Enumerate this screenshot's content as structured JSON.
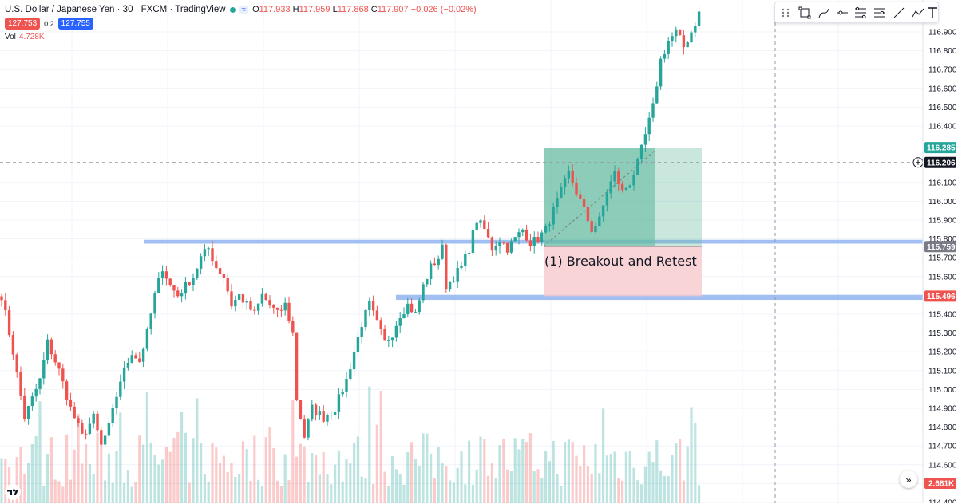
{
  "header": {
    "symbol": "U.S. Dollar / Japanese Yen · 30 · FXCM · TradingView",
    "open_label": "O",
    "open": "117.933",
    "high_label": "H",
    "high": "117.959",
    "low_label": "L",
    "low": "117.868",
    "close_label": "C",
    "close": "117.907",
    "change": "−0.026 (−0.02%)",
    "wave_icon": "≈"
  },
  "prices": {
    "sell": "127.753",
    "spread": "0.2",
    "buy": "127.755"
  },
  "volume": {
    "label": "Vol",
    "value": "4.728K"
  },
  "annotation": "(1) Breakout and Retest",
  "scroll_icon": "»",
  "colors": {
    "up": "#26a69a",
    "down": "#ef5350",
    "zone": "#90b4f0",
    "profit": "#66bba1",
    "loss": "#f7c9cd"
  },
  "toolbar_icons": [
    "drag-icon",
    "rectangle-icon",
    "path-icon",
    "horizontal-ray-icon",
    "channel-icon",
    "fib-icon",
    "trend-line-icon",
    "polyline-icon",
    "text-icon"
  ],
  "chart_data": {
    "type": "candlestick",
    "y_ticks": [
      "116.900",
      "116.800",
      "116.700",
      "116.600",
      "116.500",
      "116.400",
      "116.100",
      "116.000",
      "115.900",
      "115.800",
      "115.700",
      "115.600",
      "115.400",
      "115.300",
      "115.200",
      "115.100",
      "115.000",
      "114.900",
      "114.800",
      "114.700",
      "114.600",
      "114.500",
      "114.400"
    ],
    "ylim": [
      114.4,
      116.96
    ],
    "price_labels": [
      {
        "value": 116.285,
        "text": "116.285",
        "color": "#26a69a"
      },
      {
        "value": 116.206,
        "text": "116.206",
        "color": "#131722"
      },
      {
        "value": 115.759,
        "text": "115.759",
        "color": "#787b86"
      },
      {
        "value": 115.496,
        "text": "115.496",
        "color": "#ef5350"
      }
    ],
    "volume_label": {
      "text": "2.681K",
      "color": "#ef5350"
    },
    "zones": [
      {
        "y_from": 115.775,
        "y_to": 115.795
      },
      {
        "y_from": 115.476,
        "y_to": 115.503
      }
    ],
    "position": {
      "entry": 115.76,
      "target": 116.285,
      "stop": 115.496
    },
    "crosshair_price": 116.206,
    "path": [
      [
        0,
        115.5
      ],
      [
        3,
        115.2
      ],
      [
        6,
        114.85
      ],
      [
        10,
        115.05
      ],
      [
        12,
        115.25
      ],
      [
        15,
        115.1
      ],
      [
        18,
        114.9
      ],
      [
        21,
        114.75
      ],
      [
        24,
        114.85
      ],
      [
        26,
        114.7
      ],
      [
        28,
        114.8
      ],
      [
        31,
        115.05
      ],
      [
        34,
        115.2
      ],
      [
        36,
        115.15
      ],
      [
        38,
        115.3
      ],
      [
        40,
        115.5
      ],
      [
        42,
        115.65
      ],
      [
        44,
        115.55
      ],
      [
        46,
        115.5
      ],
      [
        48,
        115.55
      ],
      [
        50,
        115.6
      ],
      [
        52,
        115.7
      ],
      [
        54,
        115.75
      ],
      [
        56,
        115.65
      ],
      [
        58,
        115.6
      ],
      [
        60,
        115.45
      ],
      [
        62,
        115.5
      ],
      [
        64,
        115.45
      ],
      [
        66,
        115.4
      ],
      [
        68,
        115.5
      ],
      [
        70,
        115.45
      ],
      [
        72,
        115.4
      ],
      [
        74,
        115.45
      ],
      [
        76,
        115.3
      ],
      [
        77,
        114.95
      ],
      [
        79,
        114.75
      ],
      [
        81,
        114.9
      ],
      [
        84,
        114.85
      ],
      [
        87,
        114.9
      ],
      [
        90,
        115.05
      ],
      [
        92,
        115.2
      ],
      [
        94,
        115.35
      ],
      [
        96,
        115.45
      ],
      [
        98,
        115.35
      ],
      [
        100,
        115.25
      ],
      [
        102,
        115.3
      ],
      [
        104,
        115.4
      ],
      [
        106,
        115.45
      ],
      [
        108,
        115.4
      ],
      [
        110,
        115.55
      ],
      [
        112,
        115.65
      ],
      [
        114,
        115.7
      ],
      [
        115,
        115.75
      ],
      [
        116,
        115.55
      ],
      [
        118,
        115.6
      ],
      [
        120,
        115.65
      ],
      [
        122,
        115.75
      ],
      [
        124,
        115.9
      ],
      [
        126,
        115.85
      ],
      [
        128,
        115.75
      ],
      [
        130,
        115.8
      ],
      [
        132,
        115.75
      ],
      [
        134,
        115.8
      ],
      [
        136,
        115.85
      ],
      [
        138,
        115.78
      ],
      [
        140,
        115.8
      ],
      [
        142,
        115.85
      ],
      [
        144,
        115.95
      ],
      [
        146,
        116.05
      ],
      [
        148,
        116.15
      ],
      [
        150,
        116.05
      ],
      [
        152,
        115.95
      ],
      [
        154,
        115.85
      ],
      [
        156,
        115.9
      ],
      [
        158,
        116.05
      ],
      [
        160,
        116.15
      ],
      [
        162,
        116.05
      ],
      [
        164,
        116.1
      ],
      [
        166,
        116.2
      ],
      [
        168,
        116.35
      ],
      [
        170,
        116.5
      ],
      [
        172,
        116.75
      ],
      [
        174,
        116.85
      ],
      [
        176,
        116.9
      ],
      [
        178,
        116.82
      ],
      [
        180,
        116.9
      ],
      [
        182,
        117.0
      ]
    ]
  }
}
